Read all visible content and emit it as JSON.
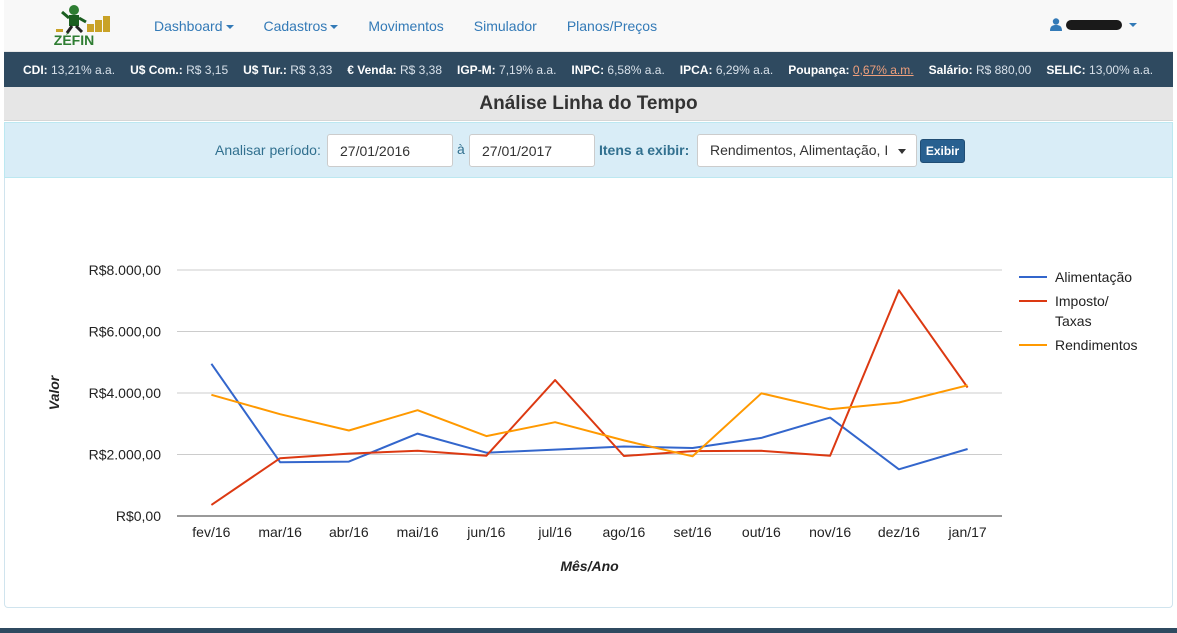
{
  "app": {
    "logo_text": "ZÉFIN"
  },
  "nav": {
    "items": [
      {
        "label": "Dashboard",
        "dropdown": true
      },
      {
        "label": "Cadastros",
        "dropdown": true
      },
      {
        "label": "Movimentos",
        "dropdown": false
      },
      {
        "label": "Simulador",
        "dropdown": false
      },
      {
        "label": "Planos/Preços",
        "dropdown": false
      }
    ],
    "user_icon": "user-icon"
  },
  "ticker": {
    "items": [
      {
        "label": "CDI:",
        "value": "13,21% a.a."
      },
      {
        "label": "U$ Com.:",
        "value": "R$ 3,15"
      },
      {
        "label": "U$ Tur.:",
        "value": "R$ 3,33"
      },
      {
        "label": "€ Venda:",
        "value": "R$ 3,38"
      },
      {
        "label": "IGP-M:",
        "value": "7,19% a.a."
      },
      {
        "label": "INPC:",
        "value": "6,58% a.a."
      },
      {
        "label": "IPCA:",
        "value": "6,29% a.a."
      },
      {
        "label": "Poupança:",
        "value": "0,67% a.m."
      },
      {
        "label": "Salário:",
        "value": "R$ 880,00"
      },
      {
        "label": "SELIC:",
        "value": "13,00% a.a."
      }
    ]
  },
  "page": {
    "title": "Análise Linha do Tempo"
  },
  "filter": {
    "period_label": "Analisar período:",
    "date_from": "27/01/2016",
    "separator": "à",
    "date_to": "27/01/2017",
    "items_label": "Itens a exibir:",
    "items_selected": "Rendimentos, Alimentação, I",
    "submit_label": "Exibir"
  },
  "chart_data": {
    "type": "line",
    "xlabel": "Mês/Ano",
    "ylabel": "Valor",
    "categories": [
      "fev/16",
      "mar/16",
      "abr/16",
      "mai/16",
      "jun/16",
      "jul/16",
      "ago/16",
      "set/16",
      "out/16",
      "nov/16",
      "dez/16",
      "jan/17"
    ],
    "ylim": [
      0,
      8000
    ],
    "yticks": [
      0,
      2000,
      4000,
      6000,
      8000
    ],
    "ytick_labels": [
      "R$0,00",
      "R$2.000,00",
      "R$4.000,00",
      "R$6.000,00",
      "R$8.000,00"
    ],
    "grid": true,
    "legend_position": "right",
    "series": [
      {
        "name": "Alimentação",
        "color": "#3366cc",
        "values": [
          4950,
          1750,
          1770,
          2680,
          2060,
          2160,
          2260,
          2210,
          2540,
          3200,
          1520,
          2180
        ]
      },
      {
        "name": "Imposto/ Taxas",
        "legend_lines": [
          "Imposto/",
          "Taxas"
        ],
        "color": "#dc3912",
        "values": [
          360,
          1880,
          2030,
          2120,
          1960,
          4420,
          1950,
          2110,
          2120,
          1960,
          7340,
          4180
        ]
      },
      {
        "name": "Rendimentos",
        "color": "#ff9900",
        "values": [
          3940,
          3310,
          2780,
          3440,
          2600,
          3050,
          2460,
          1940,
          3990,
          3470,
          3690,
          4250
        ]
      }
    ]
  }
}
